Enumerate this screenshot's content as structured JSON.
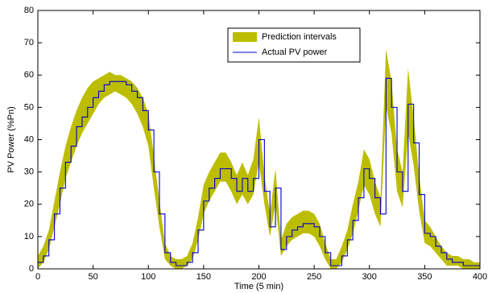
{
  "chart_data": {
    "type": "line",
    "xlabel": "Time (5 min)",
    "ylabel": "PV Power (%Pn)",
    "x": [
      0,
      5,
      10,
      15,
      20,
      25,
      30,
      35,
      40,
      45,
      50,
      55,
      60,
      65,
      70,
      75,
      80,
      85,
      90,
      95,
      100,
      105,
      110,
      115,
      120,
      125,
      130,
      135,
      140,
      145,
      150,
      155,
      160,
      165,
      170,
      175,
      180,
      185,
      190,
      195,
      200,
      205,
      210,
      215,
      220,
      225,
      230,
      235,
      240,
      245,
      250,
      255,
      260,
      265,
      270,
      275,
      280,
      285,
      290,
      295,
      300,
      305,
      310,
      315,
      320,
      325,
      330,
      335,
      340,
      345,
      350,
      355,
      360,
      365,
      370,
      375,
      380,
      385,
      390,
      395,
      400
    ],
    "series": [
      {
        "name": "Prediction intervals",
        "color": "#bdbd00",
        "lower": [
          0,
          2,
          6,
          13,
          20,
          28,
          33,
          38,
          42,
          45,
          48,
          51,
          53,
          54,
          55,
          54,
          53,
          51,
          48,
          44,
          38,
          25,
          13,
          3,
          1,
          0,
          0,
          1,
          3,
          9,
          17,
          21,
          24,
          27,
          27,
          24,
          20,
          23,
          20,
          23,
          33,
          20,
          10,
          20,
          4,
          7,
          9,
          10,
          11,
          11,
          10,
          7,
          3,
          0,
          0,
          2,
          6,
          11,
          18,
          26,
          23,
          17,
          13,
          50,
          42,
          24,
          19,
          42,
          32,
          18,
          8,
          7,
          5,
          3,
          1,
          1,
          1,
          0,
          0,
          0,
          0
        ],
        "upper": [
          4,
          7,
          12,
          21,
          30,
          38,
          44,
          49,
          53,
          56,
          58,
          59,
          60,
          61,
          60,
          60,
          59,
          58,
          56,
          53,
          48,
          35,
          21,
          8,
          4,
          3,
          3,
          4,
          8,
          16,
          26,
          30,
          33,
          36,
          36,
          33,
          29,
          33,
          29,
          34,
          47,
          29,
          17,
          31,
          9,
          14,
          16,
          17,
          18,
          18,
          17,
          14,
          8,
          3,
          3,
          7,
          12,
          20,
          27,
          37,
          34,
          27,
          22,
          68,
          58,
          37,
          30,
          62,
          47,
          29,
          15,
          13,
          10,
          7,
          5,
          4,
          4,
          3,
          3,
          2,
          2
        ]
      },
      {
        "name": "Actual PV power",
        "color": "#0000cc",
        "values": [
          2,
          4,
          9,
          17,
          25,
          33,
          38,
          44,
          47,
          50,
          53,
          55,
          57,
          58,
          58,
          58,
          57,
          55,
          53,
          49,
          43,
          30,
          17,
          5,
          2,
          1,
          1,
          2,
          5,
          12,
          21,
          25,
          28,
          31,
          31,
          28,
          24,
          28,
          24,
          28,
          40,
          24,
          13,
          25,
          6,
          10,
          12,
          13,
          14,
          14,
          13,
          10,
          5,
          1,
          1,
          4,
          9,
          15,
          22,
          31,
          28,
          22,
          17,
          59,
          50,
          30,
          24,
          51,
          39,
          23,
          11,
          10,
          7,
          5,
          3,
          2,
          2,
          1,
          1,
          1,
          1
        ]
      }
    ],
    "xlim": [
      0,
      400
    ],
    "xticks": [
      0,
      50,
      100,
      150,
      200,
      250,
      300,
      350,
      400
    ],
    "ylim": [
      0,
      80
    ],
    "yticks": [
      0,
      10,
      20,
      30,
      40,
      50,
      60,
      70,
      80
    ],
    "grid": false,
    "legend": "upper center"
  }
}
